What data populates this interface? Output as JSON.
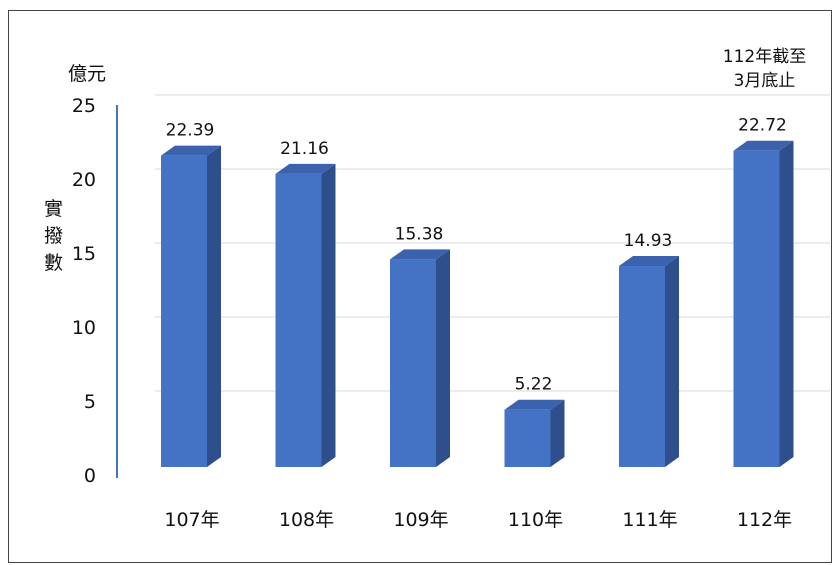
{
  "chart_data": {
    "type": "bar",
    "categories": [
      "107年",
      "108年",
      "109年",
      "110年",
      "111年",
      "112年"
    ],
    "values": [
      22.39,
      21.16,
      15.38,
      5.22,
      14.93,
      22.72
    ],
    "value_labels": [
      "22.39",
      "21.16",
      "15.38",
      "5.22",
      "14.93",
      "22.72"
    ],
    "unit": "億元",
    "ylabel": "實撥數",
    "ylim": [
      0,
      25
    ],
    "yticks": [
      0,
      5,
      10,
      15,
      20,
      25
    ],
    "annotation": [
      "112年截至",
      "3月底止"
    ],
    "grid": true,
    "colors": {
      "bar_front": "#4472c4",
      "bar_side": "#2f4f8c",
      "bar_top": "#3a62ad",
      "grid": "#d9d9d9",
      "axis": "#4472c4"
    }
  }
}
